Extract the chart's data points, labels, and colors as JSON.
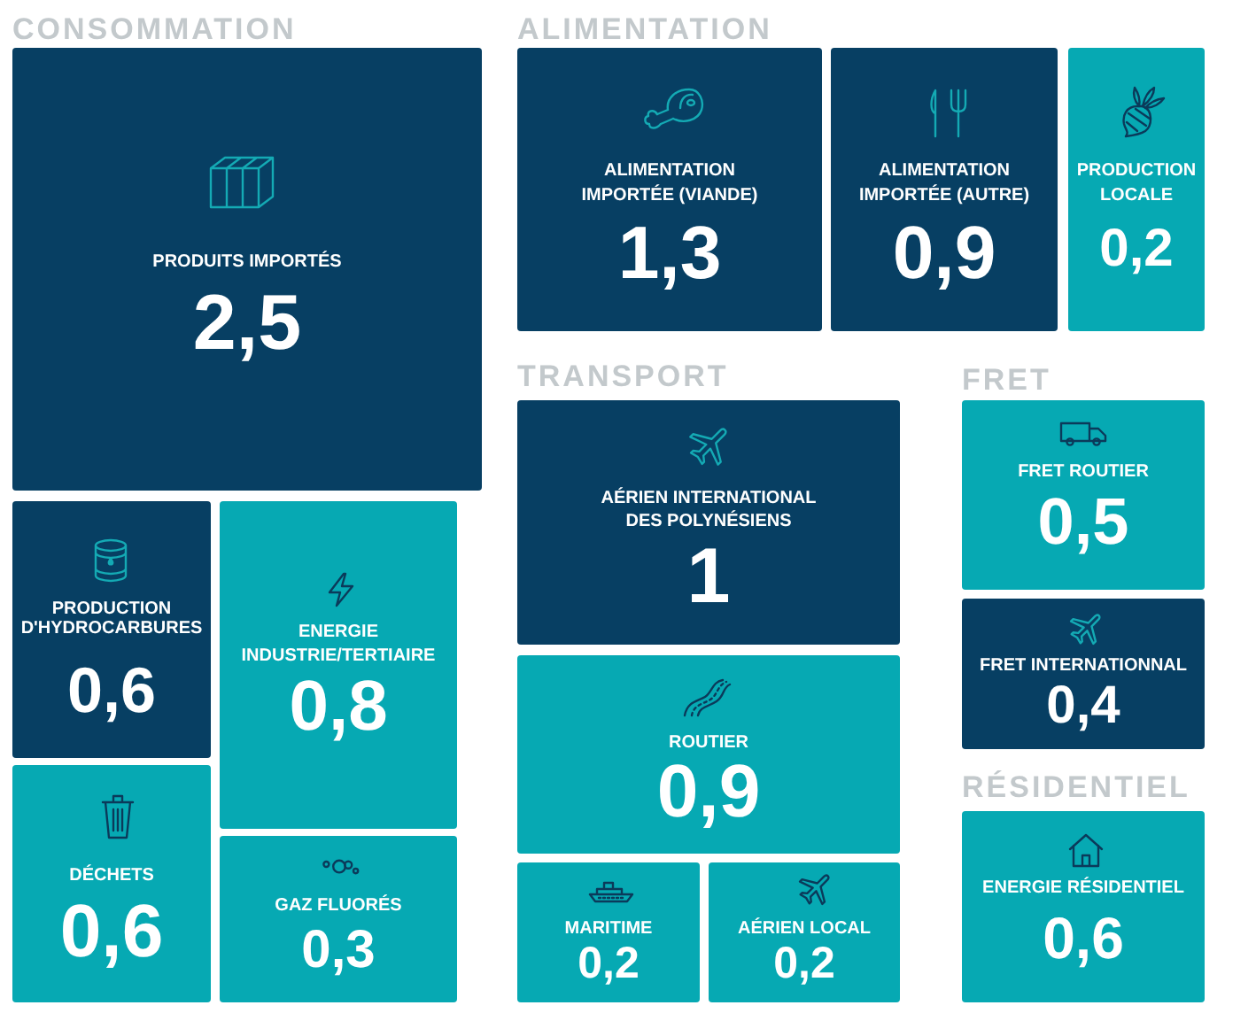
{
  "chart_data": [
    {
      "type": "other",
      "title": "CONSOMMATION",
      "categories": [
        "PRODUITS IMPORTÉS",
        "PRODUCTION D'HYDROCARBURES",
        "ENERGIE INDUSTRIE/TERTIAIRE",
        "DÉCHETS",
        "GAZ FLUORÉS"
      ],
      "values": [
        2.5,
        0.6,
        0.8,
        0.6,
        0.3
      ],
      "value_labels": [
        "2,5",
        "0,6",
        "0,8",
        "0,6",
        "0,3"
      ],
      "colors": [
        "#073f63",
        "#073f63",
        "#06a9b3",
        "#06a9b3",
        "#06a9b3"
      ]
    },
    {
      "type": "other",
      "title": "ALIMENTATION",
      "categories": [
        "ALIMENTATION IMPORTÉE (VIANDE)",
        "ALIMENTATION IMPORTÉE (AUTRE)",
        "PRODUCTION LOCALE"
      ],
      "values": [
        1.3,
        0.9,
        0.2
      ],
      "value_labels": [
        "1,3",
        "0,9",
        "0,2"
      ],
      "colors": [
        "#073f63",
        "#073f63",
        "#06a9b3"
      ]
    },
    {
      "type": "other",
      "title": "TRANSPORT",
      "categories": [
        "AÉRIEN INTERNATIONAL DES POLYNÉSIENS",
        "ROUTIER",
        "MARITIME",
        "AÉRIEN LOCAL"
      ],
      "values": [
        1,
        0.9,
        0.2,
        0.2
      ],
      "value_labels": [
        "1",
        "0,9",
        "0,2",
        "0,2"
      ],
      "colors": [
        "#073f63",
        "#06a9b3",
        "#06a9b3",
        "#06a9b3"
      ]
    },
    {
      "type": "other",
      "title": "FRET",
      "categories": [
        "FRET ROUTIER",
        "FRET INTERNATIONNAL"
      ],
      "values": [
        0.5,
        0.4
      ],
      "value_labels": [
        "0,5",
        "0,4"
      ],
      "colors": [
        "#06a9b3",
        "#073f63"
      ]
    },
    {
      "type": "other",
      "title": "RÉSIDENTIEL",
      "categories": [
        "ENERGIE RÉSIDENTIEL"
      ],
      "values": [
        0.6
      ],
      "value_labels": [
        "0,6"
      ],
      "colors": [
        "#06a9b3"
      ]
    }
  ]
}
